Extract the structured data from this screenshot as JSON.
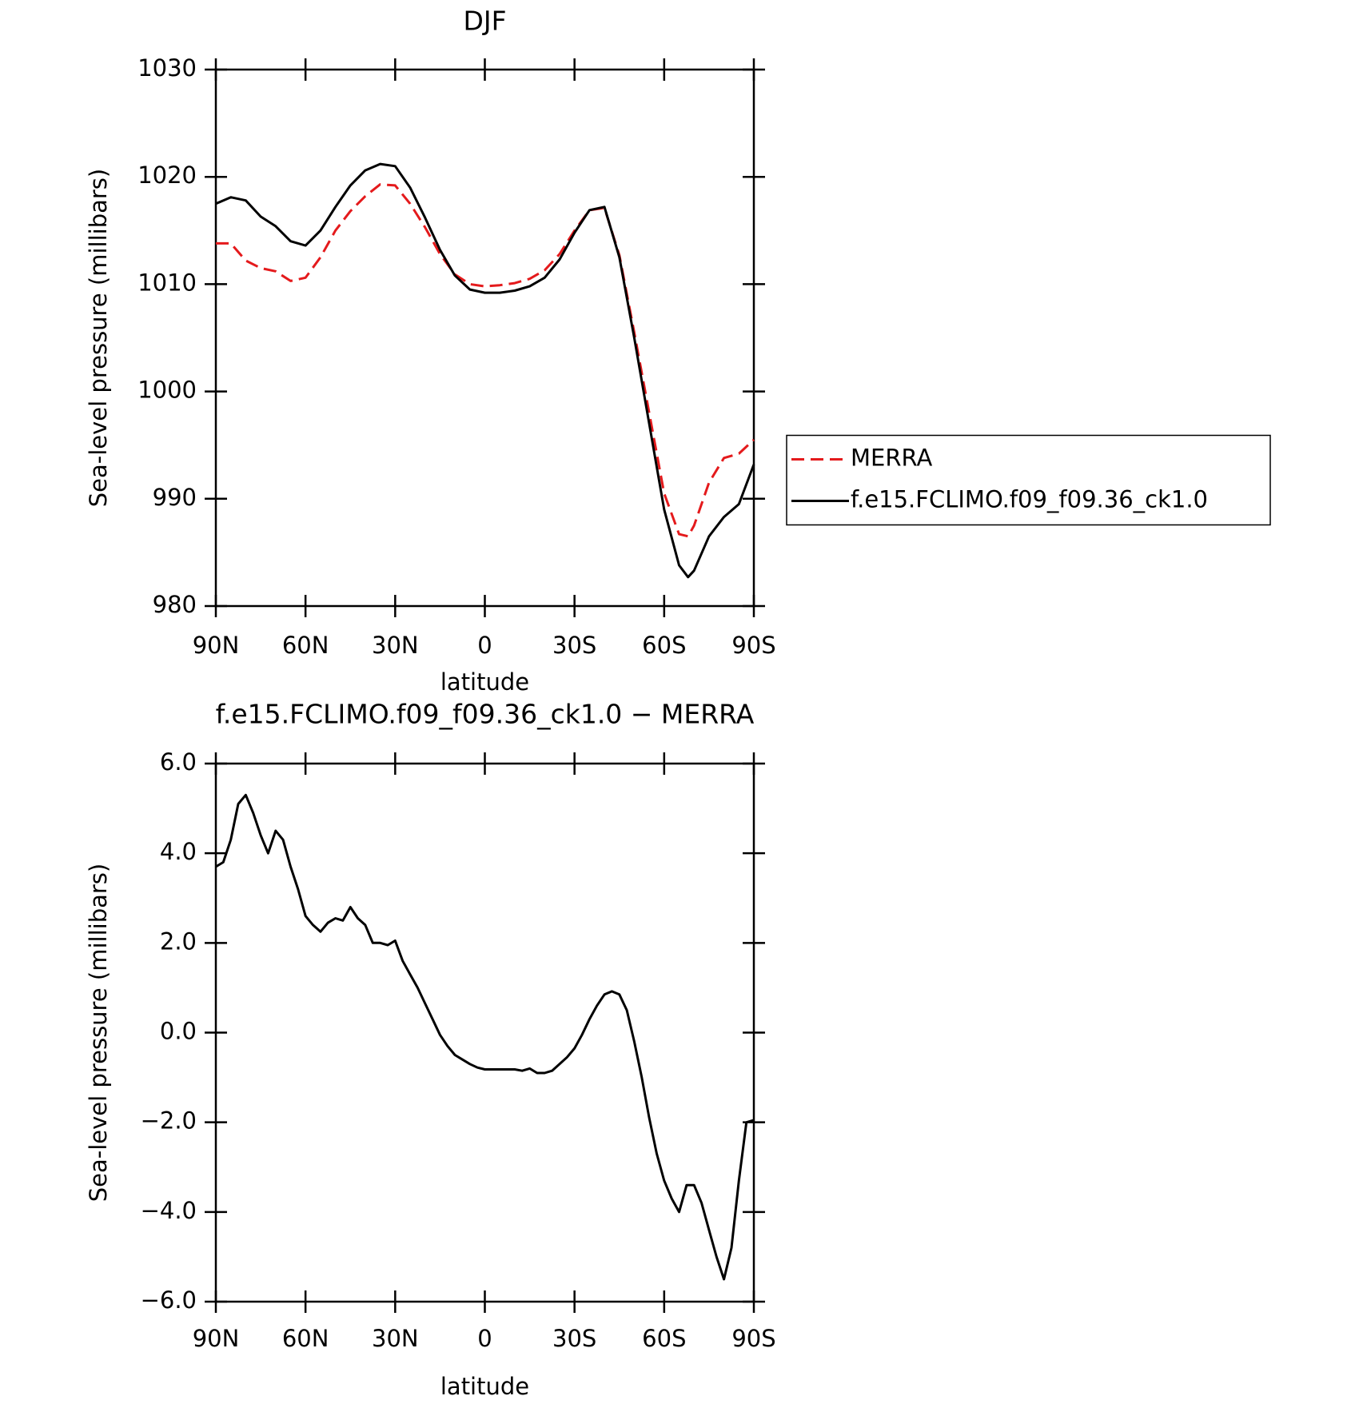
{
  "chart_data": [
    {
      "type": "line",
      "title": "DJF",
      "x_label": "latitude",
      "y_label": "Sea-level pressure (millibars)",
      "x": [
        90,
        85,
        80,
        75,
        70,
        65,
        60,
        55,
        50,
        45,
        40,
        35,
        30,
        25,
        20,
        15,
        10,
        5,
        0,
        -5,
        -10,
        -15,
        -20,
        -25,
        -30,
        -35,
        -40,
        -45,
        -50,
        -55,
        -60,
        -65,
        -68,
        -70,
        -75,
        -80,
        -85,
        -90
      ],
      "xlim": [
        90,
        -90
      ],
      "xticks": [
        {
          "value": 90,
          "label": "90N"
        },
        {
          "value": 60,
          "label": "60N"
        },
        {
          "value": 30,
          "label": "30N"
        },
        0,
        {
          "value": -30,
          "label": "30S"
        },
        {
          "value": -60,
          "label": "60S"
        },
        {
          "value": -90,
          "label": "90S"
        }
      ],
      "ylim": [
        980,
        1030
      ],
      "yticks": [
        980,
        990,
        1000,
        1010,
        1020,
        1030
      ],
      "legend": "right",
      "series": [
        {
          "name": "MERRA",
          "color": "#e41a1c",
          "dash": true,
          "values": [
            1013.8,
            1013.8,
            1012.2,
            1011.5,
            1011.2,
            1010.3,
            1010.6,
            1012.5,
            1015,
            1016.8,
            1018.2,
            1019.3,
            1019.2,
            1017.5,
            1015.3,
            1012.8,
            1010.9,
            1010,
            1009.8,
            1009.9,
            1010.1,
            1010.5,
            1011.3,
            1012.8,
            1015,
            1016.9,
            1017.1,
            1012.7,
            1005.5,
            998,
            990.5,
            986.7,
            986.5,
            987.5,
            991.5,
            993.8,
            994.2,
            995.5
          ]
        },
        {
          "name": "f.e15.FCLIMO.f09_f09.36_ck1.0",
          "color": "#000000",
          "dash": false,
          "values": [
            1017.5,
            1018.1,
            1017.8,
            1016.3,
            1015.4,
            1014,
            1013.6,
            1015,
            1017.2,
            1019.2,
            1020.6,
            1021.2,
            1021,
            1019,
            1016.2,
            1013.2,
            1010.8,
            1009.5,
            1009.2,
            1009.2,
            1009.4,
            1009.8,
            1010.6,
            1012.3,
            1014.8,
            1016.9,
            1017.2,
            1012.5,
            1005,
            997,
            989,
            983.8,
            982.7,
            983.3,
            986.5,
            988.3,
            989.5,
            993.2
          ]
        }
      ]
    },
    {
      "type": "line",
      "title": "f.e15.FCLIMO.f09_f09.36_ck1.0 − MERRA",
      "x_label": "latitude",
      "y_label": "Sea-level pressure (millibars)",
      "x": [
        90,
        87.5,
        85,
        82.5,
        80,
        77.5,
        75,
        72.5,
        70,
        67.5,
        65,
        62.5,
        60,
        57.5,
        55,
        52.5,
        50,
        47.5,
        45,
        42.5,
        40,
        37.5,
        35,
        32.5,
        30,
        27.5,
        25,
        22.5,
        20,
        17.5,
        15,
        12.5,
        10,
        7.5,
        5,
        2.5,
        0,
        -2.5,
        -5,
        -7.5,
        -10,
        -12.5,
        -15,
        -17.5,
        -20,
        -22.5,
        -25,
        -27.5,
        -30,
        -32.5,
        -35,
        -37.5,
        -40,
        -42.5,
        -45,
        -47.5,
        -50,
        -52.5,
        -55,
        -57.5,
        -60,
        -62.5,
        -65,
        -67.5,
        -70,
        -72.5,
        -75,
        -77.5,
        -80,
        -82.5,
        -85,
        -87.5,
        -90
      ],
      "xlim": [
        90,
        -90
      ],
      "xticks": [
        {
          "value": 90,
          "label": "90N"
        },
        {
          "value": 60,
          "label": "60N"
        },
        {
          "value": 30,
          "label": "30N"
        },
        0,
        {
          "value": -30,
          "label": "30S"
        },
        {
          "value": -60,
          "label": "60S"
        },
        {
          "value": -90,
          "label": "90S"
        }
      ],
      "ylim": [
        -6,
        6
      ],
      "yticks": [
        {
          "value": -6,
          "label": "−6.0"
        },
        {
          "value": -4,
          "label": "−4.0"
        },
        {
          "value": -2,
          "label": "−2.0"
        },
        {
          "value": 0,
          "label": "0.0"
        },
        {
          "value": 2,
          "label": "2.0"
        },
        {
          "value": 4,
          "label": "4.0"
        },
        {
          "value": 6,
          "label": "6.0"
        }
      ],
      "series": [
        {
          "color": "#000000",
          "dash": false,
          "values": [
            3.7,
            3.8,
            4.3,
            5.1,
            5.3,
            4.9,
            4.4,
            4.0,
            4.5,
            4.3,
            3.7,
            3.2,
            2.6,
            2.4,
            2.25,
            2.45,
            2.55,
            2.5,
            2.8,
            2.55,
            2.4,
            2.0,
            2.0,
            1.95,
            2.05,
            1.6,
            1.3,
            1.0,
            0.65,
            0.3,
            -0.05,
            -0.3,
            -0.5,
            -0.6,
            -0.7,
            -0.78,
            -0.82,
            -0.82,
            -0.82,
            -0.82,
            -0.82,
            -0.85,
            -0.8,
            -0.9,
            -0.9,
            -0.85,
            -0.7,
            -0.55,
            -0.35,
            -0.05,
            0.3,
            0.6,
            0.85,
            0.92,
            0.85,
            0.5,
            -0.2,
            -1.0,
            -1.9,
            -2.7,
            -3.3,
            -3.7,
            -4.0,
            -3.4,
            -3.4,
            -3.8,
            -4.4,
            -5.0,
            -5.5,
            -4.8,
            -3.3,
            -2.0,
            -1.95
          ]
        }
      ]
    }
  ]
}
